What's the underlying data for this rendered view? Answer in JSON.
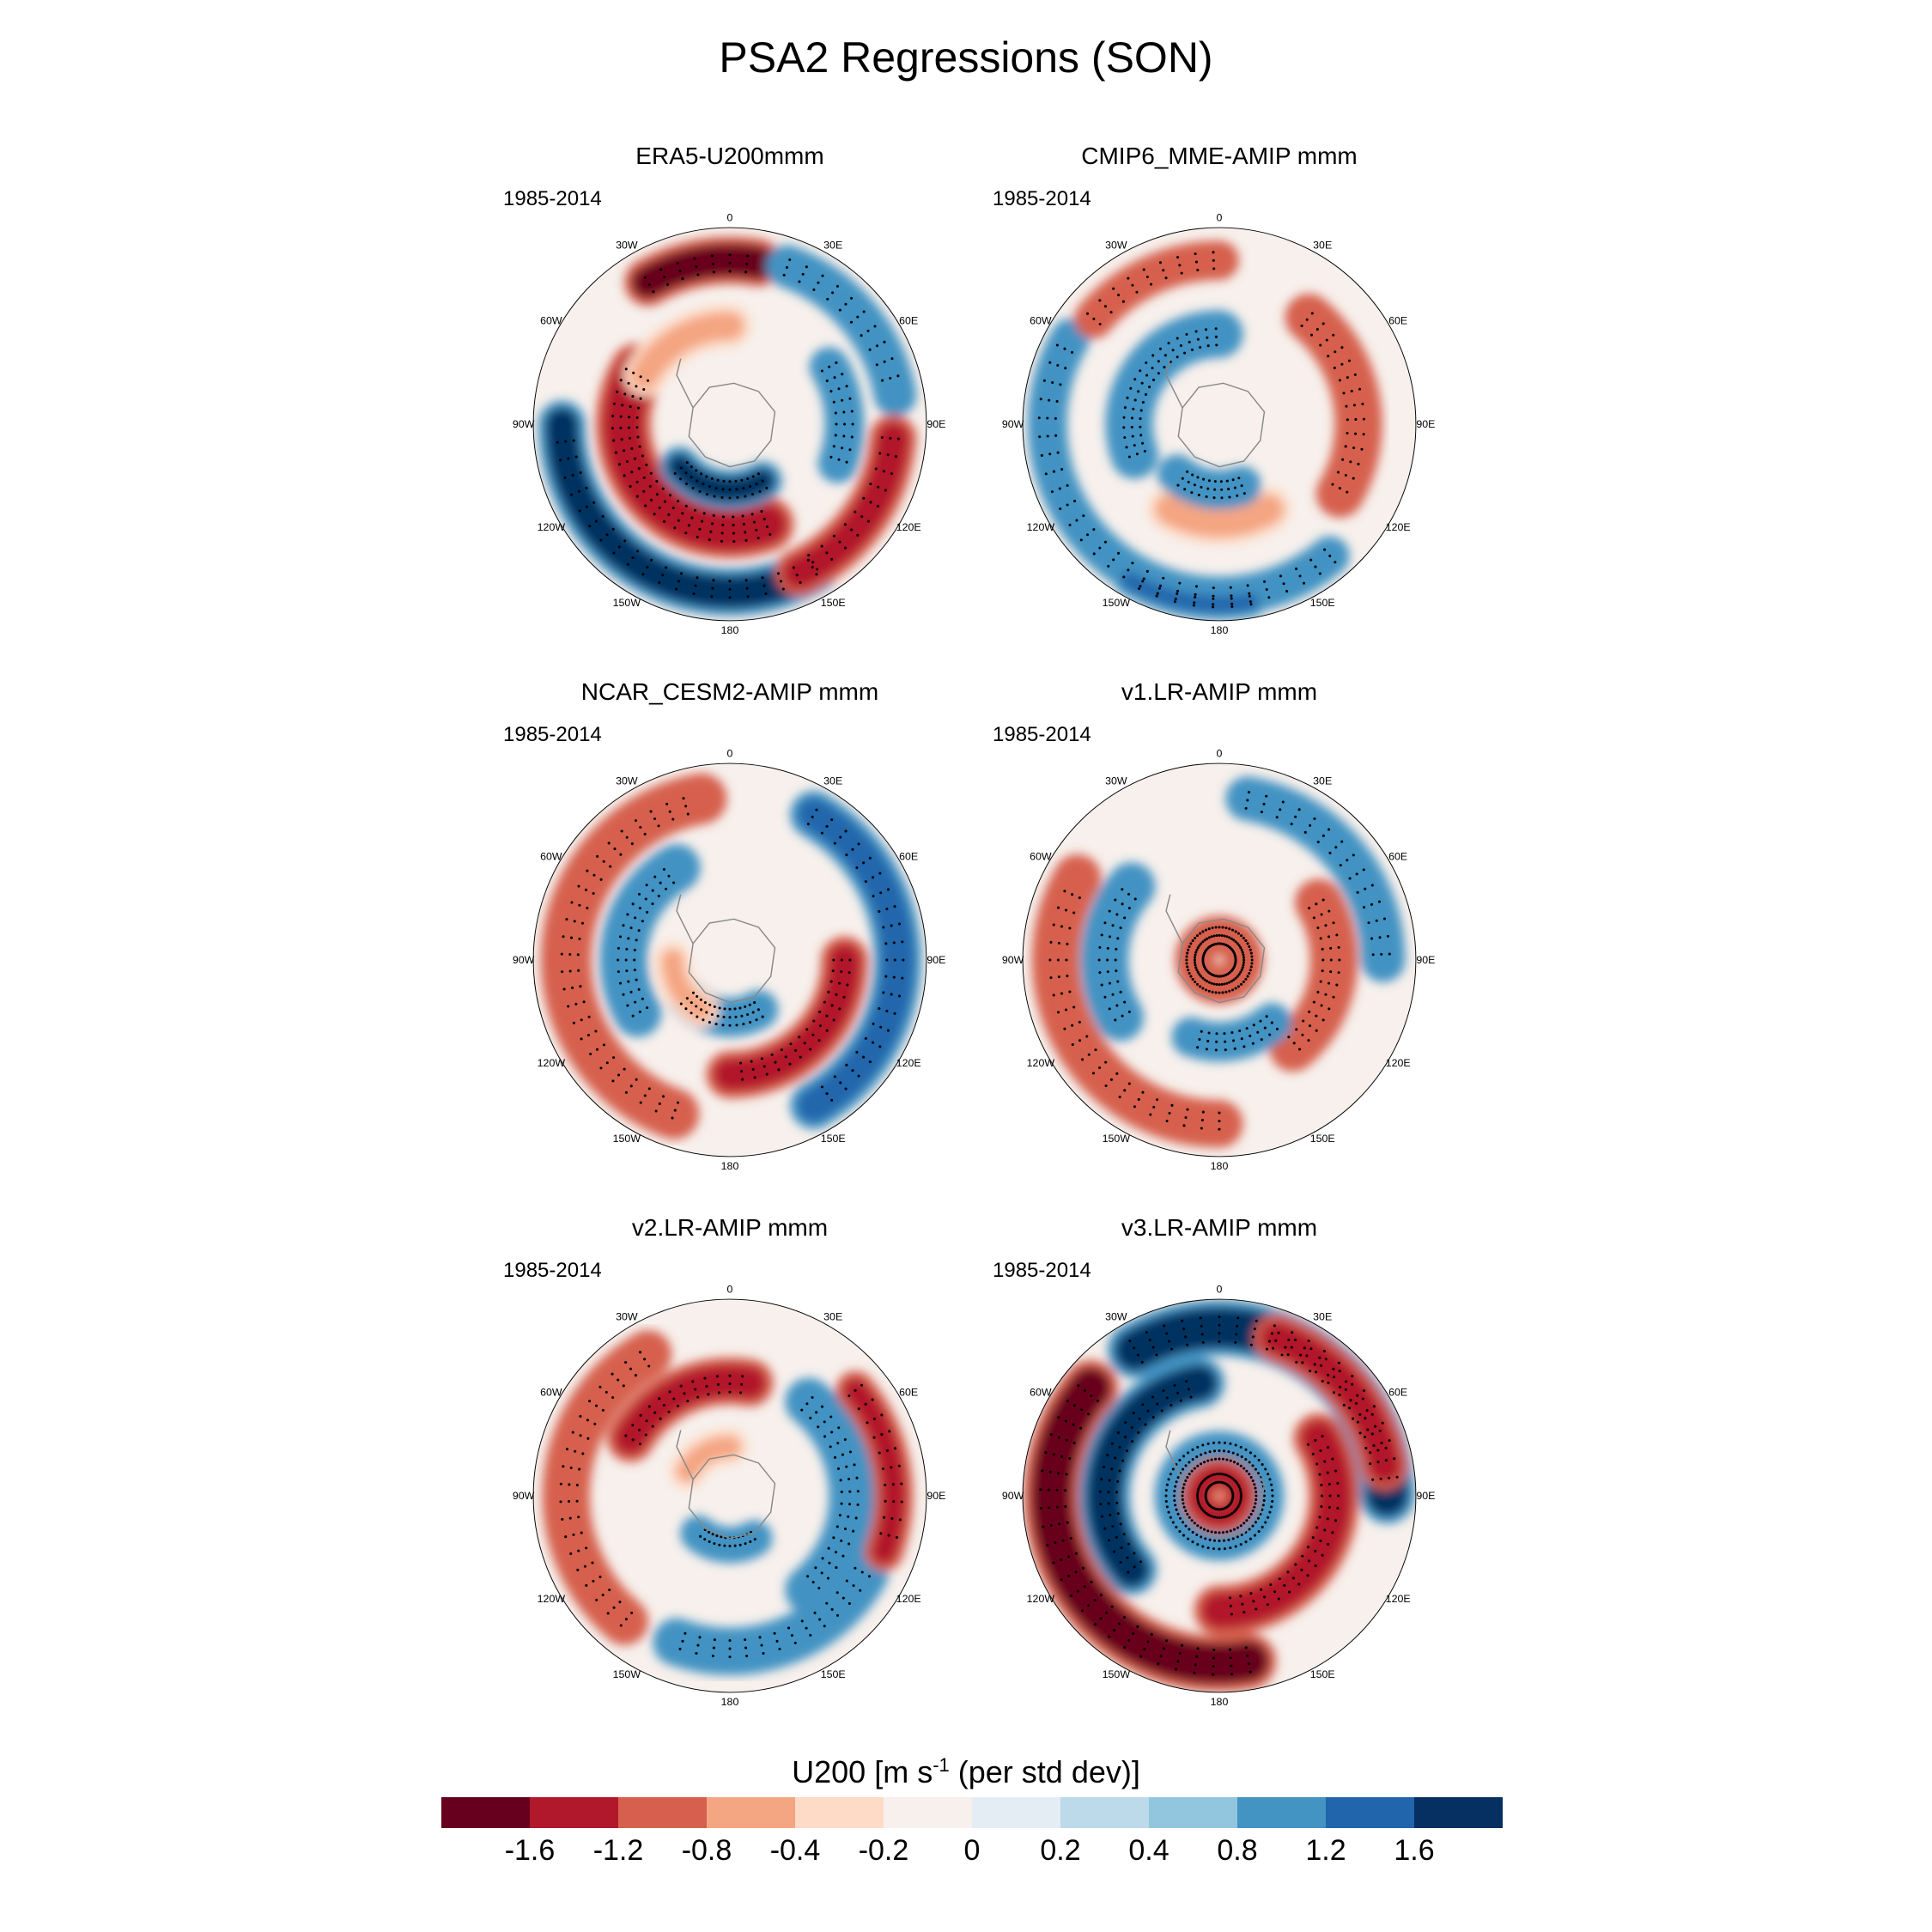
{
  "title": "PSA2 Regressions (SON)",
  "panels": [
    {
      "title": "ERA5-U200mmm",
      "years": "1985-2014"
    },
    {
      "title": "CMIP6_MME-AMIP  mmm",
      "years": "1985-2014"
    },
    {
      "title": "NCAR_CESM2-AMIP  mmm",
      "years": "1985-2014"
    },
    {
      "title": "v1.LR-AMIP  mmm",
      "years": "1985-2014"
    },
    {
      "title": "v2.LR-AMIP  mmm",
      "years": "1985-2014"
    },
    {
      "title": "v3.LR-AMIP  mmm",
      "years": "1985-2014"
    }
  ],
  "longitude_labels": [
    "0",
    "30E",
    "60E",
    "90E",
    "120E",
    "150E",
    "180",
    "150W",
    "120W",
    "90W",
    "60W",
    "30W"
  ],
  "colorbar": {
    "label_main": "U200 [m s",
    "label_sup": "-1",
    "label_tail": " (per std dev)]",
    "colors": [
      "#67001f",
      "#b2182b",
      "#d6604d",
      "#f4a582",
      "#fddbc7",
      "#f7f0ec",
      "#e4edf3",
      "#bcdaea",
      "#92c5de",
      "#4393c3",
      "#2166ac",
      "#053061"
    ],
    "ticks": [
      "-1.6",
      "-1.2",
      "-0.8",
      "-0.4",
      "-0.2",
      "0",
      "0.2",
      "0.4",
      "0.8",
      "1.2",
      "1.6"
    ]
  }
}
